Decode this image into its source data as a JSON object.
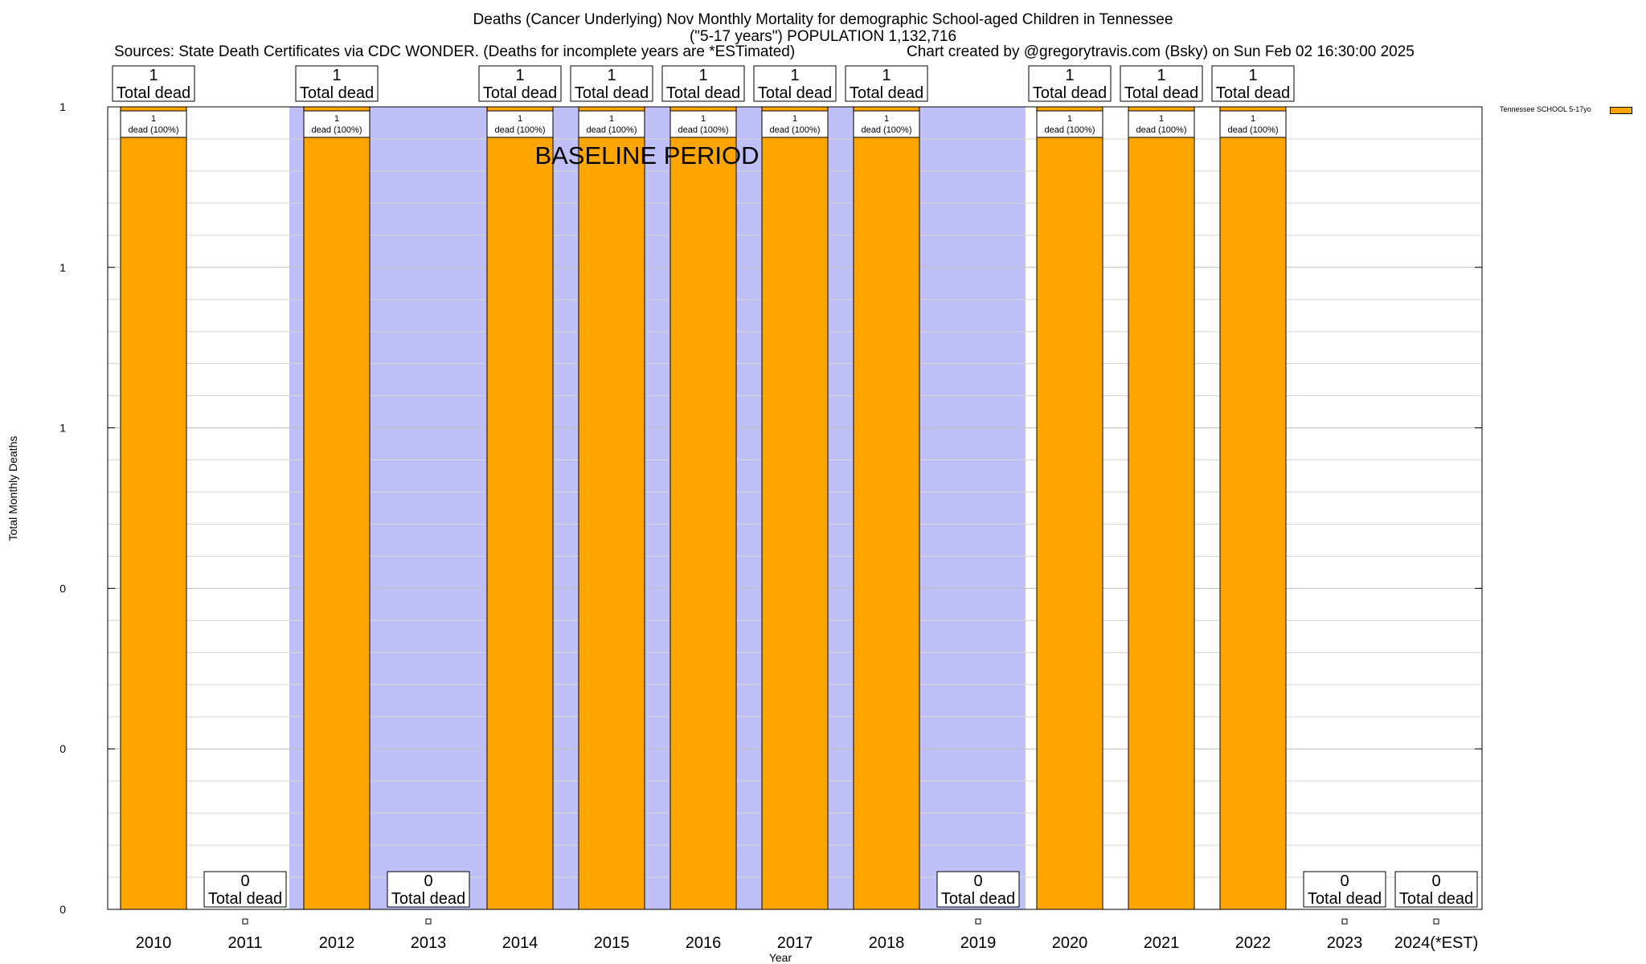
{
  "header": {
    "title_line1": "Deaths (Cancer Underlying) Nov Monthly Mortality for demographic School-aged Children in Tennessee",
    "title_line2": "(\"5-17 years\") POPULATION 1,132,716",
    "sources": "Sources: State Death Certificates via CDC WONDER. (Deaths for incomplete years are *ESTimated)",
    "credit": "Chart created by @gregorytravis.com (Bsky) on Sun Feb 02 16:30:00 2025"
  },
  "chart_data": {
    "type": "bar",
    "title": "Deaths (Cancer Underlying) Nov Monthly Mortality for demographic School-aged Children in Tennessee",
    "xlabel": "Year",
    "ylabel": "Total Monthly Deaths",
    "categories": [
      "2010",
      "2011",
      "2012",
      "2013",
      "2014",
      "2015",
      "2016",
      "2017",
      "2018",
      "2019",
      "2020",
      "2021",
      "2022",
      "2023",
      "2024(*EST)"
    ],
    "series": [
      {
        "name": "Tennessee SCHOOL 5-17yo",
        "color": "#ffa500",
        "values": [
          1,
          0,
          1,
          0,
          1,
          1,
          1,
          1,
          1,
          0,
          1,
          1,
          1,
          0,
          0
        ]
      }
    ],
    "total_labels": [
      "1",
      "0",
      "1",
      "0",
      "1",
      "1",
      "1",
      "1",
      "1",
      "0",
      "1",
      "1",
      "1",
      "0",
      "0"
    ],
    "total_suffix": "Total dead",
    "bar_labels": [
      "1",
      "",
      "1",
      "",
      "1",
      "1",
      "1",
      "1",
      "1",
      "",
      "1",
      "1",
      "1",
      "",
      ""
    ],
    "bar_sublabels": [
      "dead (100%)",
      "",
      "dead (100%)",
      "",
      "dead (100%)",
      "dead (100%)",
      "dead (100%)",
      "dead (100%)",
      "dead (100%)",
      "",
      "dead (100%)",
      "dead (100%)",
      "dead (100%)",
      "",
      ""
    ],
    "ylim": [
      0,
      1
    ],
    "ytick_values": [
      0,
      0.2,
      0.4,
      0.6,
      0.8,
      1
    ],
    "ytick_labels": [
      "0",
      "0",
      "0",
      "1",
      "1",
      "1"
    ],
    "baseline_period": {
      "label": "BASELINE PERIOD",
      "from": "2012",
      "to": "2019",
      "color": "#c0c0f8"
    },
    "grid": true,
    "legend_position": "top-right"
  }
}
